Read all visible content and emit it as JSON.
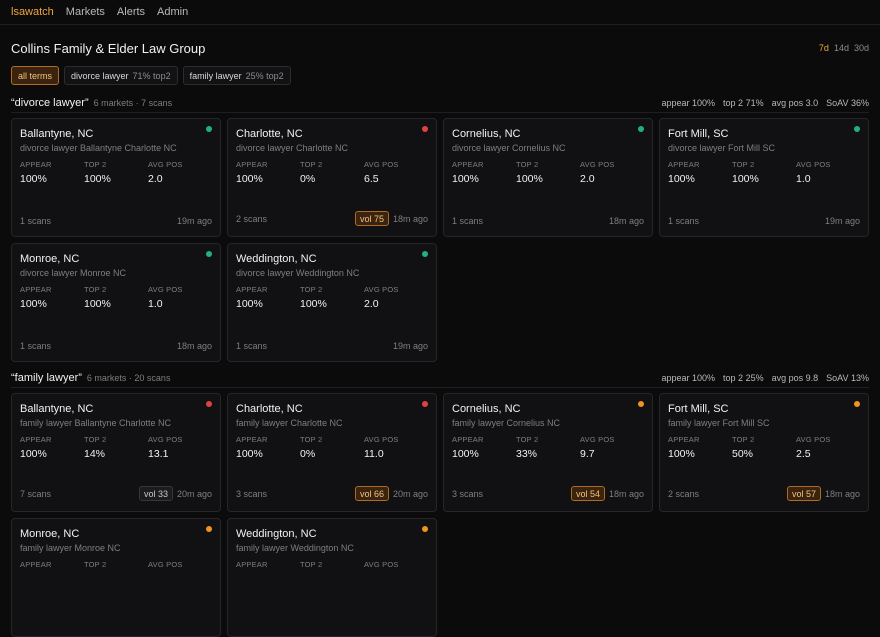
{
  "nav": {
    "brand": "lsawatch",
    "links": [
      "Markets",
      "Alerts",
      "Admin"
    ]
  },
  "header": {
    "client": "Collins Family & Elder Law Group",
    "ranges": [
      "7d",
      "14d",
      "30d"
    ],
    "active_range": "7d"
  },
  "filters": [
    {
      "label": "all terms",
      "stat": "",
      "active": true
    },
    {
      "label": "divorce lawyer",
      "stat": "71% top2",
      "active": false
    },
    {
      "label": "family lawyer",
      "stat": "25% top2",
      "active": false
    }
  ],
  "metric_labels": {
    "appear": "APPEAR",
    "top2": "TOP 2",
    "avgpos": "AVG POS"
  },
  "sections": [
    {
      "title": "“divorce lawyer”",
      "meta": "6 markets · 7 scans",
      "stats": [
        "appear 100%",
        "top 2 71%",
        "avg pos 3.0",
        "SoAV 36%"
      ],
      "cards": [
        {
          "city": "Ballantyne, NC",
          "query": "divorce lawyer Ballantyne Charlotte NC",
          "status": "green",
          "appear": "100%",
          "top2": "100%",
          "avgpos": "2.0",
          "scans": "1 scans",
          "vol": "",
          "vol_style": "",
          "age": "19m ago"
        },
        {
          "city": "Charlotte, NC",
          "query": "divorce lawyer Charlotte NC",
          "status": "red",
          "appear": "100%",
          "top2": "0%",
          "avgpos": "6.5",
          "scans": "2 scans",
          "vol": "vol 75",
          "vol_style": "hot",
          "age": "18m ago"
        },
        {
          "city": "Cornelius, NC",
          "query": "divorce lawyer Cornelius NC",
          "status": "green",
          "appear": "100%",
          "top2": "100%",
          "avgpos": "2.0",
          "scans": "1 scans",
          "vol": "",
          "vol_style": "",
          "age": "18m ago"
        },
        {
          "city": "Fort Mill, SC",
          "query": "divorce lawyer Fort Mill SC",
          "status": "green",
          "appear": "100%",
          "top2": "100%",
          "avgpos": "1.0",
          "scans": "1 scans",
          "vol": "",
          "vol_style": "",
          "age": "19m ago"
        },
        {
          "city": "Monroe, NC",
          "query": "divorce lawyer Monroe NC",
          "status": "green",
          "appear": "100%",
          "top2": "100%",
          "avgpos": "1.0",
          "scans": "1 scans",
          "vol": "",
          "vol_style": "",
          "age": "18m ago"
        },
        {
          "city": "Weddington, NC",
          "query": "divorce lawyer Weddington NC",
          "status": "green",
          "appear": "100%",
          "top2": "100%",
          "avgpos": "2.0",
          "scans": "1 scans",
          "vol": "",
          "vol_style": "",
          "age": "19m ago"
        }
      ]
    },
    {
      "title": "“family lawyer”",
      "meta": "6 markets · 20 scans",
      "stats": [
        "appear 100%",
        "top 2 25%",
        "avg pos 9.8",
        "SoAV 13%"
      ],
      "cards": [
        {
          "city": "Ballantyne, NC",
          "query": "family lawyer Ballantyne Charlotte NC",
          "status": "red",
          "appear": "100%",
          "top2": "14%",
          "avgpos": "13.1",
          "scans": "7 scans",
          "vol": "vol 33",
          "vol_style": "plain",
          "age": "20m ago"
        },
        {
          "city": "Charlotte, NC",
          "query": "family lawyer Charlotte NC",
          "status": "red",
          "appear": "100%",
          "top2": "0%",
          "avgpos": "11.0",
          "scans": "3 scans",
          "vol": "vol 66",
          "vol_style": "hot",
          "age": "20m ago"
        },
        {
          "city": "Cornelius, NC",
          "query": "family lawyer Cornelius NC",
          "status": "orange",
          "appear": "100%",
          "top2": "33%",
          "avgpos": "9.7",
          "scans": "3 scans",
          "vol": "vol 54",
          "vol_style": "hot",
          "age": "18m ago"
        },
        {
          "city": "Fort Mill, SC",
          "query": "family lawyer Fort Mill SC",
          "status": "orange",
          "appear": "100%",
          "top2": "50%",
          "avgpos": "2.5",
          "scans": "2 scans",
          "vol": "vol 57",
          "vol_style": "hot",
          "age": "18m ago"
        },
        {
          "city": "Monroe, NC",
          "query": "family lawyer Monroe NC",
          "status": "orange",
          "appear": "",
          "top2": "",
          "avgpos": "",
          "scans": "",
          "vol": "",
          "vol_style": "",
          "age": ""
        },
        {
          "city": "Weddington, NC",
          "query": "family lawyer Weddington NC",
          "status": "orange",
          "appear": "",
          "top2": "",
          "avgpos": "",
          "scans": "",
          "vol": "",
          "vol_style": "",
          "age": ""
        }
      ]
    }
  ]
}
